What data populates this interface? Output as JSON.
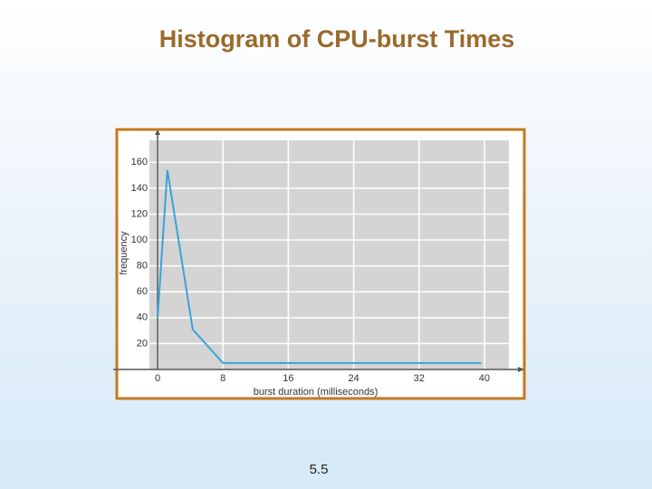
{
  "title": "Histogram of CPU-burst Times",
  "slide_number": "5.5",
  "chart_data": {
    "type": "line",
    "xlabel": "burst duration (milliseconds)",
    "ylabel": "frequency",
    "x": [
      0,
      1.2,
      4.3,
      8,
      39.6
    ],
    "values": [
      40,
      154,
      31,
      5,
      5
    ],
    "color": "#3aa3de",
    "xlim": [
      -1,
      43
    ],
    "ylim": [
      0,
      177
    ],
    "xticks": [
      0,
      8,
      16,
      24,
      32,
      40
    ],
    "yticks": [
      20,
      40,
      60,
      80,
      100,
      120,
      140,
      160
    ],
    "grid": true
  }
}
